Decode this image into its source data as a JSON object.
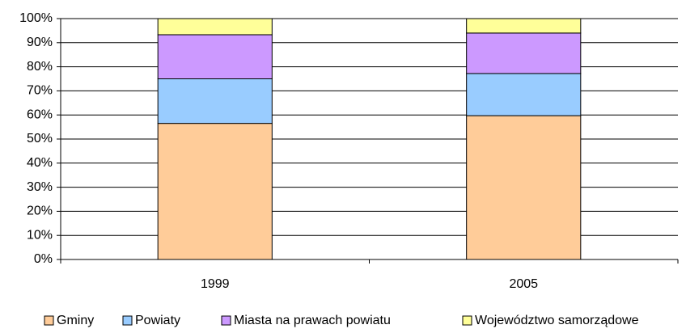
{
  "chart_data": {
    "type": "stacked_bar_100",
    "categories": [
      "1999",
      "2005"
    ],
    "series": [
      {
        "name": "Gminy",
        "color": "#FFCC99",
        "values": [
          56.5,
          59.7
        ]
      },
      {
        "name": "Powiaty",
        "color": "#99CCFF",
        "values": [
          18.5,
          17.5
        ]
      },
      {
        "name": "Miasta na prawach powiatu",
        "color": "#CC99FF",
        "values": [
          18.3,
          16.8
        ]
      },
      {
        "name": "Województwo samorządowe",
        "color": "#FFFF99",
        "values": [
          6.7,
          6.0
        ]
      }
    ],
    "ylim": [
      0,
      100
    ],
    "yticks": [
      {
        "value": 0,
        "label": "0%"
      },
      {
        "value": 10,
        "label": "10%"
      },
      {
        "value": 20,
        "label": "20%"
      },
      {
        "value": 30,
        "label": "30%"
      },
      {
        "value": 40,
        "label": "40%"
      },
      {
        "value": 50,
        "label": "50%"
      },
      {
        "value": 60,
        "label": "60%"
      },
      {
        "value": 70,
        "label": "70%"
      },
      {
        "value": 80,
        "label": "80%"
      },
      {
        "value": 90,
        "label": "90%"
      },
      {
        "value": 100,
        "label": "100%"
      }
    ],
    "grid": true,
    "legend": "bottom"
  }
}
